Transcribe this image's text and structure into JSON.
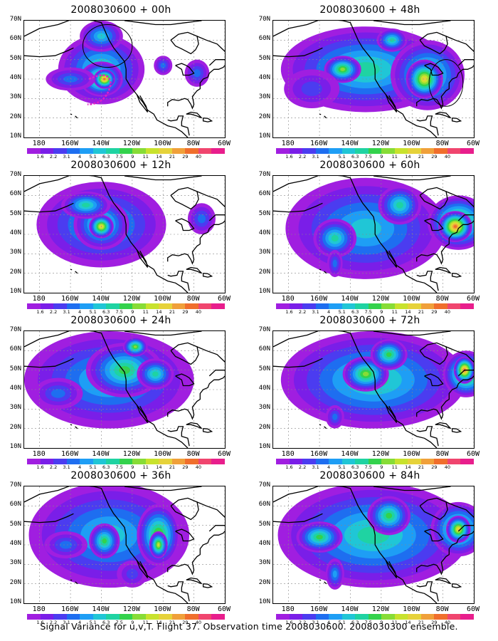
{
  "caption": "Signal Variance for u,v,T. Flight 37. Observation time 2008030600. 2008030300 ensemble.",
  "axes": {
    "lat_labels": [
      "70N",
      "60N",
      "50N",
      "40N",
      "30N",
      "20N",
      "10N"
    ],
    "lon_labels": [
      "180",
      "160W",
      "140W",
      "120W",
      "100W",
      "80W",
      "60W"
    ]
  },
  "colorbar": {
    "ticks": [
      "1.6",
      "2.2",
      "3.1",
      "4",
      "5.1",
      "6.3",
      "7.5",
      "9",
      "11",
      "14",
      "21",
      "29",
      "40"
    ],
    "colors": [
      "#a01ee0",
      "#7a1ee8",
      "#4b3cf0",
      "#1e6ef0",
      "#1e9ef5",
      "#20c6d6",
      "#1fd3a2",
      "#33d24c",
      "#87dc36",
      "#c8e22d",
      "#e6d23a",
      "#f0a03a",
      "#f06e2c",
      "#f0456e",
      "#e81e8c"
    ]
  },
  "panels": [
    {
      "title": "2008030600 + 00h"
    },
    {
      "title": "2008030600 + 48h"
    },
    {
      "title": "2008030600 + 12h"
    },
    {
      "title": "2008030600 + 60h"
    },
    {
      "title": "2008030600 + 24h"
    },
    {
      "title": "2008030600 + 72h"
    },
    {
      "title": "2008030600 + 36h"
    },
    {
      "title": "2008030600 + 84h"
    }
  ]
}
